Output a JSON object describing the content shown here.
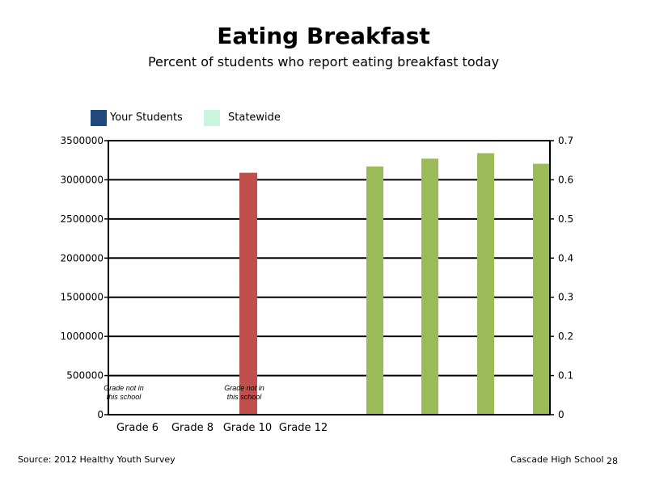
{
  "chart_data": {
    "type": "bar",
    "title": "Eating Breakfast",
    "subtitle": "Percent of students who report eating breakfast today",
    "categories": [
      "Grade 6",
      "Grade 8",
      "Grade 10",
      "Grade 12"
    ],
    "series": [
      {
        "name": "Your Students",
        "values": [
          null,
          null,
          null,
          null
        ]
      },
      {
        "name": "Statewide",
        "values": [
          null,
          null,
          null,
          null
        ]
      }
    ],
    "extra_bars": {
      "red_bar_value": 3090000,
      "green_bar_values": [
        0.634,
        0.654,
        0.668,
        0.641
      ]
    },
    "annotations": [
      "Grade not in this school",
      "Grade not in this school"
    ],
    "ylim_left": [
      0,
      3500000
    ],
    "yticks_left": [
      "0",
      "500000",
      "1000000",
      "1500000",
      "2000000",
      "2500000",
      "3000000",
      "3500000"
    ],
    "ylim_right": [
      0,
      0.7
    ],
    "yticks_right": [
      "0",
      "0.1",
      "0.2",
      "0.3",
      "0.4",
      "0.5",
      "0.6",
      "0.7"
    ],
    "grid": true,
    "legend_position": "top-left",
    "colors": {
      "your_students": "#1F497D",
      "statewide": "#CCF5DE",
      "red_bar": "#C0504D",
      "green_bar": "#9BBB59"
    }
  },
  "footer": {
    "source": "Source: 2012 Healthy Youth Survey",
    "school": "Cascade High School",
    "page": "28"
  }
}
